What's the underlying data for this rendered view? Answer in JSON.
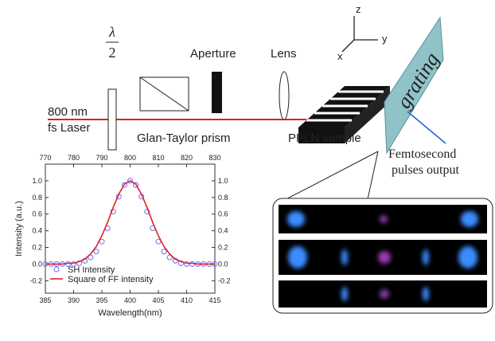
{
  "diagram": {
    "half_wave_plate": {
      "numerator": "λ",
      "denominator": "2"
    },
    "laser": {
      "line1": "800 nm",
      "line2": "fs Laser"
    },
    "polarizer": "Glan-Taylor prism",
    "aperture": "Aperture",
    "lens": "Lens",
    "crystal": "PPLN sample",
    "grating": "grating",
    "output": {
      "line1": "Femtosecond",
      "line2": "pulses output"
    },
    "axes": {
      "z": "z",
      "y": "y",
      "x": "x"
    }
  },
  "chart_data": {
    "type": "line",
    "xlabel": "Wavelength(nm)",
    "ylabel": "Intensity (a.u.)",
    "x": [
      385,
      386,
      387,
      388,
      389,
      390,
      391,
      392,
      393,
      394,
      395,
      396,
      397,
      398,
      399,
      400,
      401,
      402,
      403,
      404,
      405,
      406,
      407,
      408,
      409,
      410,
      411,
      412,
      413,
      414,
      415
    ],
    "series": [
      {
        "name": "SH Intensity",
        "color": "#6b6bff",
        "marker": "circle",
        "values": [
          0,
          0,
          0,
          0,
          0,
          0,
          0.01,
          0.04,
          0.08,
          0.15,
          0.27,
          0.43,
          0.63,
          0.81,
          0.95,
          1.0,
          0.95,
          0.81,
          0.63,
          0.43,
          0.27,
          0.15,
          0.08,
          0.04,
          0.01,
          0,
          0,
          0,
          0,
          0,
          0
        ]
      },
      {
        "name": "Square of FF intensity",
        "color": "#e0202a",
        "marker": "line",
        "values": [
          0,
          0,
          0,
          0,
          0.01,
          0.01,
          0.03,
          0.06,
          0.12,
          0.21,
          0.34,
          0.5,
          0.68,
          0.84,
          0.96,
          1.0,
          0.96,
          0.84,
          0.68,
          0.5,
          0.34,
          0.21,
          0.12,
          0.06,
          0.03,
          0.01,
          0.01,
          0,
          0,
          0,
          0
        ]
      }
    ],
    "xlim": [
      385,
      415
    ],
    "xticks": [
      385,
      390,
      395,
      400,
      405,
      410,
      415
    ],
    "x2lim": [
      770,
      830
    ],
    "x2ticks": [
      770,
      780,
      790,
      800,
      810,
      820,
      830
    ],
    "ylim": [
      -0.35,
      1.2
    ],
    "yticks": [
      -0.2,
      {
        "value": 0,
        "label": "0.0"
      },
      0.2,
      0.4,
      0.6,
      0.8,
      {
        "value": 1,
        "label": "1.0"
      }
    ],
    "legend": "lower-left"
  }
}
